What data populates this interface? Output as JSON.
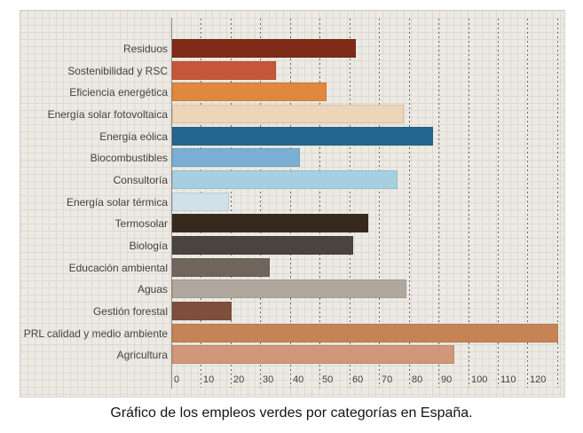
{
  "caption": "Gráfico de los empleos verdes por categorías en España.",
  "chart_data": {
    "type": "bar",
    "orientation": "horizontal",
    "title": "",
    "xlabel": "",
    "ylabel": "",
    "categories": [
      "Residuos",
      "Sostenibilidad y RSC",
      "Eficiencia energética",
      "Energía solar fotovoltaica",
      "Energía eólica",
      "Biocombustibles",
      "Consultoría",
      "Energía solar térmica",
      "Termosolar",
      "Biología",
      "Educación ambiental",
      "Aguas",
      "Gestión forestal",
      "PRL calidad y medio ambiente",
      "Agricultura"
    ],
    "values": [
      62,
      35,
      52,
      78,
      88,
      43,
      76,
      19,
      66,
      61,
      33,
      79,
      20,
      130,
      95
    ],
    "bar_colors": [
      "#7E2B17",
      "#C75539",
      "#E1873E",
      "#EDD5B9",
      "#24668F",
      "#7AB0D5",
      "#A6D0E1",
      "#CFE1EA",
      "#36291E",
      "#4B433E",
      "#6F655B",
      "#B0A89E",
      "#7E4F3B",
      "#C68456",
      "#D0977A"
    ],
    "xlim": [
      0,
      133
    ],
    "x_tick_labels": [
      "0",
      "10",
      "20",
      "30",
      "40",
      "50",
      "60",
      "70",
      "80",
      "90",
      "100",
      "110",
      "120"
    ],
    "x_gridline_step": 10,
    "x_gridline_max": 130,
    "grid": "vertical-dashed",
    "legend": "none",
    "plot_background": "#ECEAE4",
    "gridline_color": "#6D6A64"
  }
}
